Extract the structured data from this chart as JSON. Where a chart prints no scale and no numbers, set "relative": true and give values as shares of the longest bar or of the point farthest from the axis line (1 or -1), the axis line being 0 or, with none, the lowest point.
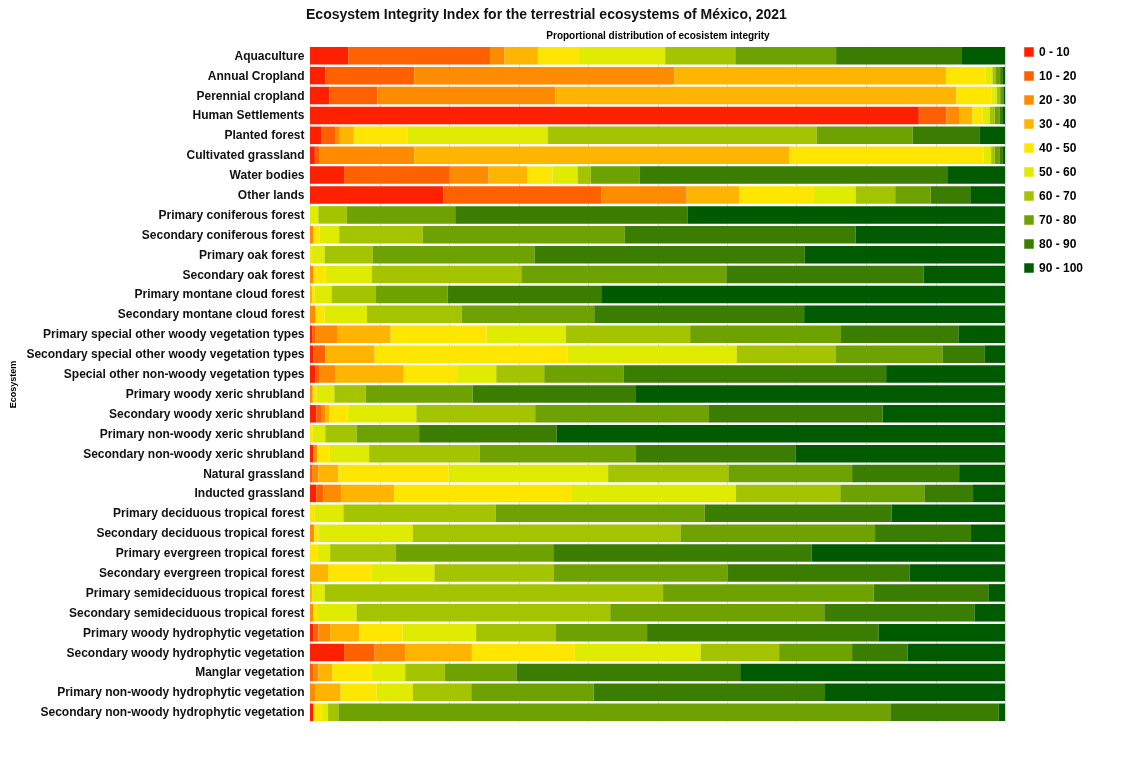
{
  "chart_data": {
    "type": "bar",
    "orientation": "horizontal",
    "stacked": true,
    "relative": true,
    "grid": "x",
    "legend": "right",
    "title": "Ecosystem Integrity Index for the terrestrial ecosystems of  México, 2021",
    "subtitle": "Proportional distribution of ecosistem integrity",
    "ylabel": "Ecosystem",
    "categories": [
      "Aquaculture",
      "Annual Cropland",
      "Perennial cropland",
      "Human Settlements",
      "Planted forest",
      "Cultivated grassland",
      "Water bodies",
      "Other lands",
      "Primary coniferous forest",
      "Secondary coniferous forest",
      "Primary oak forest",
      "Secondary oak forest",
      "Primary montane cloud forest",
      "Secondary montane cloud forest",
      "Primary special other woody vegetation types",
      "Secondary special other woody vegetation types",
      "Special other non-woody vegetation types",
      "Primary woody xeric shrubland",
      "Secondary woody xeric shrubland",
      "Primary non-woody xeric shrubland",
      "Secondary non-woody xeric shrubland",
      "Natural grassland",
      "Inducted grassland",
      "Primary deciduous tropical forest",
      "Secondary deciduous tropical forest",
      "Primary evergreen tropical forest",
      "Secondary evergreen tropical forest",
      "Primary semideciduous tropical forest",
      "Secondary semideciduous tropical forest",
      "Primary woody hydrophytic vegetation",
      "Secondary woody hydrophytic vegetation",
      "Manglar vegetation",
      "Primary non-woody hydrophytic vegetation",
      "Secondary non-woody hydrophytic vegetation"
    ],
    "series": [
      {
        "name": "0 - 10",
        "color": "#ff2000",
        "values": [
          0.055,
          0.022,
          0.028,
          0.876,
          0.016,
          0.007,
          0.049,
          0.192,
          0,
          0,
          0,
          0,
          0,
          0,
          0.003,
          0.005,
          0.008,
          0,
          0.009,
          0,
          0.005,
          0,
          0.009,
          0,
          0,
          0,
          0,
          0,
          0,
          0.005,
          0.049,
          0,
          0,
          0.005
        ]
      },
      {
        "name": "10 - 20",
        "color": "#ff6000",
        "values": [
          0.204,
          0.128,
          0.069,
          0.04,
          0.021,
          0.007,
          0.152,
          0.227,
          0,
          0,
          0,
          0,
          0,
          0,
          0.005,
          0.017,
          0.006,
          0,
          0.008,
          0,
          0,
          0.004,
          0.01,
          0,
          0,
          0,
          0,
          0,
          0,
          0.007,
          0.044,
          0.005,
          0,
          0
        ]
      },
      {
        "name": "20 - 30",
        "color": "#ff8c00",
        "values": [
          0.021,
          0.374,
          0.256,
          0.018,
          0.006,
          0.136,
          0.056,
          0.123,
          0,
          0.005,
          0,
          0.005,
          0,
          0.008,
          0.032,
          0,
          0.023,
          0.004,
          0.005,
          0,
          0.005,
          0.008,
          0.026,
          0,
          0.006,
          0,
          0,
          0,
          0.005,
          0.017,
          0.044,
          0.007,
          0.008,
          0
        ]
      },
      {
        "name": "30 - 40",
        "color": "#ffb400",
        "values": [
          0.048,
          0.391,
          0.577,
          0.019,
          0.02,
          0.54,
          0.056,
          0.076,
          0,
          0,
          0,
          0,
          0.003,
          0,
          0.076,
          0.071,
          0.098,
          0,
          0.006,
          0,
          0,
          0.029,
          0.076,
          0,
          0,
          0,
          0.026,
          0.003,
          0,
          0.042,
          0.096,
          0.02,
          0.036,
          0
        ]
      },
      {
        "name": "40 - 50",
        "color": "#ffe600",
        "values": [
          0.059,
          0.057,
          0.051,
          0.015,
          0.077,
          0.279,
          0.036,
          0.106,
          0,
          0.009,
          0.003,
          0.017,
          0.004,
          0.013,
          0.138,
          0.278,
          0.078,
          0.005,
          0.026,
          0.004,
          0.018,
          0.158,
          0.256,
          0.007,
          0.006,
          0.011,
          0.063,
          0,
          0.005,
          0.062,
          0.148,
          0.057,
          0.052,
          0.012
        ]
      },
      {
        "name": "50 - 60",
        "color": "#dfeb00",
        "values": [
          0.124,
          0.01,
          0.007,
          0.01,
          0.202,
          0.011,
          0.036,
          0.061,
          0.012,
          0.028,
          0.018,
          0.067,
          0.024,
          0.061,
          0.114,
          0.243,
          0.055,
          0.026,
          0.099,
          0.018,
          0.057,
          0.23,
          0.236,
          0.041,
          0.136,
          0.018,
          0.09,
          0.018,
          0.057,
          0.106,
          0.181,
          0.048,
          0.052,
          0.009
        ]
      },
      {
        "name": "60 - 70",
        "color": "#a4c400",
        "values": [
          0.101,
          0.005,
          0.005,
          0.007,
          0.387,
          0.005,
          0.019,
          0.057,
          0.041,
          0.12,
          0.069,
          0.215,
          0.064,
          0.136,
          0.179,
          0.142,
          0.069,
          0.045,
          0.171,
          0.045,
          0.159,
          0.173,
          0.15,
          0.219,
          0.385,
          0.094,
          0.172,
          0.487,
          0.365,
          0.115,
          0.113,
          0.057,
          0.084,
          0.015
        ]
      },
      {
        "name": "70 - 80",
        "color": "#6ea200",
        "values": [
          0.145,
          0.006,
          0.003,
          0.007,
          0.138,
          0.007,
          0.07,
          0.051,
          0.156,
          0.291,
          0.233,
          0.295,
          0.103,
          0.191,
          0.217,
          0.154,
          0.114,
          0.154,
          0.25,
          0.09,
          0.225,
          0.178,
          0.121,
          0.301,
          0.28,
          0.227,
          0.25,
          0.303,
          0.308,
          0.131,
          0.105,
          0.103,
          0.176,
          0.794
        ]
      },
      {
        "name": "80 - 90",
        "color": "#3a7d00",
        "values": [
          0.18,
          0.004,
          0.002,
          0.004,
          0.096,
          0.005,
          0.444,
          0.057,
          0.334,
          0.332,
          0.389,
          0.284,
          0.221,
          0.302,
          0.169,
          0.061,
          0.378,
          0.235,
          0.25,
          0.198,
          0.23,
          0.154,
          0.07,
          0.269,
          0.138,
          0.372,
          0.262,
          0.165,
          0.216,
          0.333,
          0.08,
          0.322,
          0.333,
          0.156
        ]
      },
      {
        "name": "90 - 100",
        "color": "#005a00",
        "values": [
          0.063,
          0.003,
          0.002,
          0.004,
          0.037,
          0.003,
          0.082,
          0.05,
          0.457,
          0.215,
          0.288,
          0.117,
          0.581,
          0.289,
          0.067,
          0.029,
          0.171,
          0.531,
          0.176,
          0.645,
          0.301,
          0.066,
          0.046,
          0.163,
          0.049,
          0.278,
          0.137,
          0.024,
          0.044,
          0.182,
          0.14,
          0.381,
          0.259,
          0.009
        ]
      }
    ]
  }
}
